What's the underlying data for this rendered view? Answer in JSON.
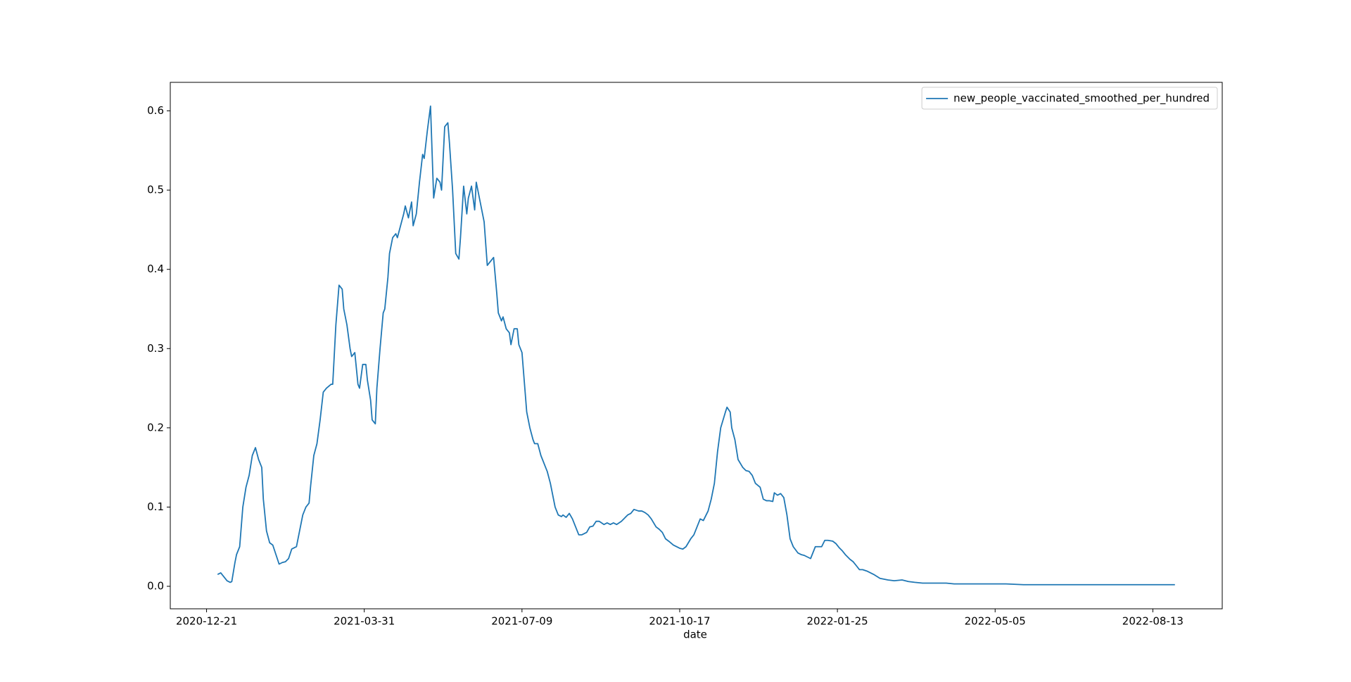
{
  "chart_data": {
    "type": "line",
    "xlabel": "date",
    "xlim": [
      "2020-11-28",
      "2022-09-26"
    ],
    "xticks": [
      "2020-12-21",
      "2021-03-31",
      "2021-07-09",
      "2021-10-17",
      "2022-01-25",
      "2022-05-05",
      "2022-08-13"
    ],
    "ylim": [
      -0.0284,
      0.636
    ],
    "yticks": [
      {
        "value": 0,
        "label": "0.0"
      },
      0.1,
      0.2,
      0.3,
      0.4,
      0.5,
      0.6
    ],
    "legend": "upper right",
    "grid": false,
    "x": [
      "2020-12-28",
      "2020-12-30",
      "2021-01-01",
      "2021-01-03",
      "2021-01-05",
      "2021-01-06",
      "2021-01-08",
      "2021-01-09",
      "2021-01-11",
      "2021-01-13",
      "2021-01-15",
      "2021-01-17",
      "2021-01-19",
      "2021-01-21",
      "2021-01-23",
      "2021-01-25",
      "2021-01-26",
      "2021-01-28",
      "2021-01-30",
      "2021-02-01",
      "2021-02-03",
      "2021-02-05",
      "2021-02-07",
      "2021-02-09",
      "2021-02-11",
      "2021-02-13",
      "2021-02-16",
      "2021-02-18",
      "2021-02-20",
      "2021-02-22",
      "2021-02-24",
      "2021-02-25",
      "2021-02-27",
      "2021-03-01",
      "2021-03-03",
      "2021-03-05",
      "2021-03-07",
      "2021-03-10",
      "2021-03-11",
      "2021-03-13",
      "2021-03-15",
      "2021-03-17",
      "2021-03-18",
      "2021-03-20",
      "2021-03-22",
      "2021-03-23",
      "2021-03-25",
      "2021-03-27",
      "2021-03-28",
      "2021-03-30",
      "2021-04-01",
      "2021-04-02",
      "2021-04-04",
      "2021-04-05",
      "2021-04-07",
      "2021-04-08",
      "2021-04-10",
      "2021-04-12",
      "2021-04-13",
      "2021-04-15",
      "2021-04-16",
      "2021-04-18",
      "2021-04-20",
      "2021-04-21",
      "2021-04-23",
      "2021-04-25",
      "2021-04-26",
      "2021-04-28",
      "2021-04-30",
      "2021-05-01",
      "2021-05-03",
      "2021-05-05",
      "2021-05-07",
      "2021-05-08",
      "2021-05-10",
      "2021-05-12",
      "2021-05-14",
      "2021-05-16",
      "2021-05-18",
      "2021-05-19",
      "2021-05-21",
      "2021-05-23",
      "2021-05-24",
      "2021-05-26",
      "2021-05-28",
      "2021-05-30",
      "2021-05-31",
      "2021-06-02",
      "2021-06-04",
      "2021-06-05",
      "2021-06-07",
      "2021-06-09",
      "2021-06-10",
      "2021-06-12",
      "2021-06-14",
      "2021-06-15",
      "2021-06-17",
      "2021-06-19",
      "2021-06-21",
      "2021-06-23",
      "2021-06-24",
      "2021-06-26",
      "2021-06-27",
      "2021-06-29",
      "2021-07-01",
      "2021-07-02",
      "2021-07-04",
      "2021-07-06",
      "2021-07-07",
      "2021-07-09",
      "2021-07-11",
      "2021-07-12",
      "2021-07-14",
      "2021-07-16",
      "2021-07-17",
      "2021-07-19",
      "2021-07-21",
      "2021-07-22",
      "2021-07-24",
      "2021-07-25",
      "2021-07-27",
      "2021-07-29",
      "2021-07-30",
      "2021-08-01",
      "2021-08-03",
      "2021-08-04",
      "2021-08-06",
      "2021-08-08",
      "2021-08-10",
      "2021-08-12",
      "2021-08-14",
      "2021-08-16",
      "2021-08-19",
      "2021-08-21",
      "2021-08-23",
      "2021-08-25",
      "2021-08-27",
      "2021-08-30",
      "2021-09-01",
      "2021-09-03",
      "2021-09-05",
      "2021-09-07",
      "2021-09-10",
      "2021-09-12",
      "2021-09-14",
      "2021-09-16",
      "2021-09-18",
      "2021-09-21",
      "2021-09-23",
      "2021-09-25",
      "2021-09-27",
      "2021-09-29",
      "2021-10-02",
      "2021-10-04",
      "2021-10-06",
      "2021-10-08",
      "2021-10-10",
      "2021-10-13",
      "2021-10-15",
      "2021-10-17",
      "2021-10-19",
      "2021-10-21",
      "2021-10-24",
      "2021-10-26",
      "2021-10-28",
      "2021-10-30",
      "2021-11-01",
      "2021-11-04",
      "2021-11-06",
      "2021-11-08",
      "2021-11-10",
      "2021-11-12",
      "2021-11-15",
      "2021-11-16",
      "2021-11-18",
      "2021-11-19",
      "2021-11-21",
      "2021-11-23",
      "2021-11-26",
      "2021-11-28",
      "2021-11-30",
      "2021-12-02",
      "2021-12-04",
      "2021-12-07",
      "2021-12-09",
      "2021-12-11",
      "2021-12-13",
      "2021-12-15",
      "2021-12-16",
      "2021-12-18",
      "2021-12-20",
      "2021-12-22",
      "2021-12-24",
      "2021-12-26",
      "2021-12-28",
      "2021-12-31",
      "2022-01-02",
      "2022-01-04",
      "2022-01-06",
      "2022-01-08",
      "2022-01-11",
      "2022-01-13",
      "2022-01-15",
      "2022-01-17",
      "2022-01-19",
      "2022-01-22",
      "2022-01-24",
      "2022-01-26",
      "2022-01-28",
      "2022-01-30",
      "2022-02-02",
      "2022-02-04",
      "2022-02-06",
      "2022-02-08",
      "2022-02-10",
      "2022-02-13",
      "2022-02-17",
      "2022-02-21",
      "2022-02-26",
      "2022-03-02",
      "2022-03-07",
      "2022-03-11",
      "2022-03-15",
      "2022-03-20",
      "2022-03-29",
      "2022-04-04",
      "2022-04-09",
      "2022-04-20",
      "2022-05-01",
      "2022-05-12",
      "2022-05-23",
      "2022-06-03",
      "2022-06-24",
      "2022-07-16",
      "2022-08-07",
      "2022-08-27"
    ],
    "series": [
      {
        "name": "new_people_vaccinated_smoothed_per_hundred",
        "color": "#1f77b4",
        "values": [
          0.015,
          0.017,
          0.012,
          0.007,
          0.005,
          0.006,
          0.03,
          0.04,
          0.05,
          0.1,
          0.125,
          0.14,
          0.165,
          0.175,
          0.16,
          0.15,
          0.11,
          0.07,
          0.055,
          0.052,
          0.04,
          0.028,
          0.03,
          0.031,
          0.035,
          0.047,
          0.05,
          0.07,
          0.09,
          0.1,
          0.105,
          0.127,
          0.165,
          0.18,
          0.21,
          0.245,
          0.25,
          0.255,
          0.255,
          0.33,
          0.38,
          0.375,
          0.35,
          0.33,
          0.3,
          0.29,
          0.295,
          0.255,
          0.25,
          0.28,
          0.28,
          0.26,
          0.235,
          0.21,
          0.205,
          0.25,
          0.3,
          0.345,
          0.35,
          0.39,
          0.42,
          0.44,
          0.445,
          0.44,
          0.455,
          0.47,
          0.48,
          0.465,
          0.485,
          0.455,
          0.47,
          0.51,
          0.545,
          0.54,
          0.575,
          0.606,
          0.49,
          0.515,
          0.51,
          0.5,
          0.58,
          0.585,
          0.56,
          0.5,
          0.42,
          0.413,
          0.44,
          0.505,
          0.47,
          0.49,
          0.505,
          0.475,
          0.51,
          0.49,
          0.47,
          0.46,
          0.405,
          0.41,
          0.415,
          0.37,
          0.345,
          0.335,
          0.34,
          0.325,
          0.32,
          0.305,
          0.325,
          0.325,
          0.305,
          0.295,
          0.245,
          0.22,
          0.2,
          0.185,
          0.18,
          0.18,
          0.165,
          0.16,
          0.15,
          0.145,
          0.13,
          0.11,
          0.1,
          0.09,
          0.088,
          0.09,
          0.087,
          0.092,
          0.085,
          0.075,
          0.065,
          0.065,
          0.068,
          0.075,
          0.076,
          0.082,
          0.082,
          0.078,
          0.08,
          0.078,
          0.08,
          0.078,
          0.082,
          0.086,
          0.09,
          0.092,
          0.097,
          0.095,
          0.095,
          0.093,
          0.09,
          0.085,
          0.075,
          0.072,
          0.068,
          0.06,
          0.057,
          0.052,
          0.05,
          0.048,
          0.047,
          0.05,
          0.06,
          0.065,
          0.075,
          0.085,
          0.083,
          0.095,
          0.11,
          0.13,
          0.17,
          0.2,
          0.22,
          0.226,
          0.22,
          0.2,
          0.185,
          0.16,
          0.15,
          0.146,
          0.145,
          0.14,
          0.13,
          0.125,
          0.11,
          0.108,
          0.108,
          0.107,
          0.118,
          0.115,
          0.117,
          0.112,
          0.09,
          0.06,
          0.05,
          0.042,
          0.04,
          0.039,
          0.037,
          0.035,
          0.05,
          0.05,
          0.05,
          0.058,
          0.058,
          0.057,
          0.054,
          0.049,
          0.045,
          0.04,
          0.034,
          0.031,
          0.026,
          0.021,
          0.021,
          0.019,
          0.015,
          0.01,
          0.008,
          0.007,
          0.008,
          0.006,
          0.005,
          0.004,
          0.004,
          0.004,
          0.003,
          0.003,
          0.003,
          0.003,
          0.002,
          0.002,
          0.002,
          0.002,
          0.002,
          0.002
        ]
      }
    ]
  }
}
